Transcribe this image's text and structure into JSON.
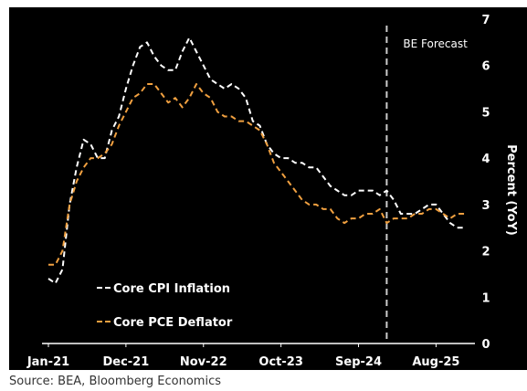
{
  "chart_data": {
    "type": "line",
    "ylabel": "Percent (YoY)",
    "ylim": [
      0,
      7
    ],
    "yticks": [
      0,
      1,
      2,
      3,
      4,
      5,
      6,
      7
    ],
    "x_start": "2021-01",
    "x_end": "2026-01",
    "xticks": [
      {
        "date": "2021-01",
        "label": "Jan-21"
      },
      {
        "date": "2021-12",
        "label": "Dec-21"
      },
      {
        "date": "2022-11",
        "label": "Nov-22"
      },
      {
        "date": "2023-10",
        "label": "Oct-23"
      },
      {
        "date": "2024-09",
        "label": "Sep-24"
      },
      {
        "date": "2025-08",
        "label": "Aug-25"
      }
    ],
    "forecast_line": {
      "date": "2025-01",
      "label": "BE Forecast"
    },
    "legend": "bottom-left",
    "grid": false,
    "series": [
      {
        "name": "Core CPI Inflation",
        "color": "#ffffff",
        "style": "dashed",
        "points": [
          [
            "2021-01",
            1.4
          ],
          [
            "2021-02",
            1.3
          ],
          [
            "2021-03",
            1.6
          ],
          [
            "2021-04",
            3.0
          ],
          [
            "2021-05",
            3.8
          ],
          [
            "2021-06",
            4.4
          ],
          [
            "2021-07",
            4.3
          ],
          [
            "2021-08",
            4.0
          ],
          [
            "2021-09",
            4.0
          ],
          [
            "2021-10",
            4.6
          ],
          [
            "2021-11",
            4.9
          ],
          [
            "2021-12",
            5.5
          ],
          [
            "2022-01",
            6.0
          ],
          [
            "2022-02",
            6.4
          ],
          [
            "2022-03",
            6.5
          ],
          [
            "2022-04",
            6.2
          ],
          [
            "2022-05",
            6.0
          ],
          [
            "2022-06",
            5.9
          ],
          [
            "2022-07",
            5.9
          ],
          [
            "2022-08",
            6.3
          ],
          [
            "2022-09",
            6.6
          ],
          [
            "2022-10",
            6.3
          ],
          [
            "2022-11",
            6.0
          ],
          [
            "2022-12",
            5.7
          ],
          [
            "2023-01",
            5.6
          ],
          [
            "2023-02",
            5.5
          ],
          [
            "2023-03",
            5.6
          ],
          [
            "2023-04",
            5.5
          ],
          [
            "2023-05",
            5.3
          ],
          [
            "2023-06",
            4.8
          ],
          [
            "2023-07",
            4.7
          ],
          [
            "2023-08",
            4.3
          ],
          [
            "2023-09",
            4.1
          ],
          [
            "2023-10",
            4.0
          ],
          [
            "2023-11",
            4.0
          ],
          [
            "2023-12",
            3.9
          ],
          [
            "2024-01",
            3.9
          ],
          [
            "2024-02",
            3.8
          ],
          [
            "2024-03",
            3.8
          ],
          [
            "2024-04",
            3.6
          ],
          [
            "2024-05",
            3.4
          ],
          [
            "2024-06",
            3.3
          ],
          [
            "2024-07",
            3.2
          ],
          [
            "2024-08",
            3.2
          ],
          [
            "2024-09",
            3.3
          ],
          [
            "2024-10",
            3.3
          ],
          [
            "2024-11",
            3.3
          ],
          [
            "2024-12",
            3.2
          ],
          [
            "2025-01",
            3.3
          ],
          [
            "2025-02",
            3.1
          ],
          [
            "2025-03",
            2.8
          ],
          [
            "2025-04",
            2.8
          ],
          [
            "2025-05",
            2.8
          ],
          [
            "2025-06",
            2.9
          ],
          [
            "2025-07",
            3.0
          ],
          [
            "2025-08",
            3.0
          ],
          [
            "2025-09",
            2.8
          ],
          [
            "2025-10",
            2.6
          ],
          [
            "2025-11",
            2.5
          ],
          [
            "2025-12",
            2.5
          ]
        ]
      },
      {
        "name": "Core PCE Deflator",
        "color": "#f0a040",
        "style": "dashed",
        "points": [
          [
            "2021-01",
            1.7
          ],
          [
            "2021-02",
            1.7
          ],
          [
            "2021-03",
            2.0
          ],
          [
            "2021-04",
            3.0
          ],
          [
            "2021-05",
            3.5
          ],
          [
            "2021-06",
            3.8
          ],
          [
            "2021-07",
            4.0
          ],
          [
            "2021-08",
            4.0
          ],
          [
            "2021-09",
            4.1
          ],
          [
            "2021-10",
            4.3
          ],
          [
            "2021-11",
            4.7
          ],
          [
            "2021-12",
            5.0
          ],
          [
            "2022-01",
            5.3
          ],
          [
            "2022-02",
            5.4
          ],
          [
            "2022-03",
            5.6
          ],
          [
            "2022-04",
            5.6
          ],
          [
            "2022-05",
            5.4
          ],
          [
            "2022-06",
            5.2
          ],
          [
            "2022-07",
            5.3
          ],
          [
            "2022-08",
            5.1
          ],
          [
            "2022-09",
            5.3
          ],
          [
            "2022-10",
            5.6
          ],
          [
            "2022-11",
            5.4
          ],
          [
            "2022-12",
            5.3
          ],
          [
            "2023-01",
            5.0
          ],
          [
            "2023-02",
            4.9
          ],
          [
            "2023-03",
            4.9
          ],
          [
            "2023-04",
            4.8
          ],
          [
            "2023-05",
            4.8
          ],
          [
            "2023-06",
            4.7
          ],
          [
            "2023-07",
            4.6
          ],
          [
            "2023-08",
            4.3
          ],
          [
            "2023-09",
            3.9
          ],
          [
            "2023-10",
            3.7
          ],
          [
            "2023-11",
            3.5
          ],
          [
            "2023-12",
            3.3
          ],
          [
            "2024-01",
            3.1
          ],
          [
            "2024-02",
            3.0
          ],
          [
            "2024-03",
            3.0
          ],
          [
            "2024-04",
            2.9
          ],
          [
            "2024-05",
            2.9
          ],
          [
            "2024-06",
            2.7
          ],
          [
            "2024-07",
            2.6
          ],
          [
            "2024-08",
            2.7
          ],
          [
            "2024-09",
            2.7
          ],
          [
            "2024-10",
            2.8
          ],
          [
            "2024-11",
            2.8
          ],
          [
            "2024-12",
            2.9
          ],
          [
            "2025-01",
            2.6
          ],
          [
            "2025-02",
            2.7
          ],
          [
            "2025-03",
            2.7
          ],
          [
            "2025-04",
            2.7
          ],
          [
            "2025-05",
            2.8
          ],
          [
            "2025-06",
            2.8
          ],
          [
            "2025-07",
            2.9
          ],
          [
            "2025-08",
            2.9
          ],
          [
            "2025-09",
            2.8
          ],
          [
            "2025-10",
            2.7
          ],
          [
            "2025-11",
            2.8
          ],
          [
            "2025-12",
            2.8
          ]
        ]
      }
    ]
  },
  "source": "Source: BEA, Bloomberg Economics"
}
